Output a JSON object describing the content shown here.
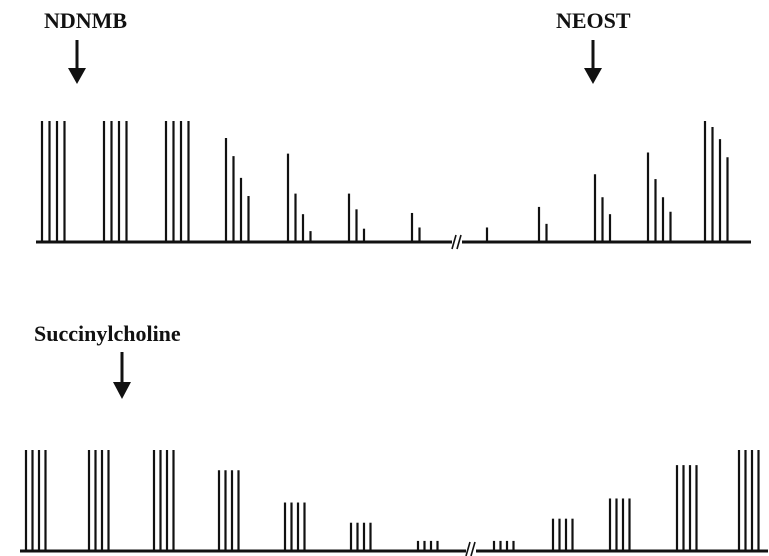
{
  "labels": {
    "ndnmb": "NDNMB",
    "neost": "NEOST",
    "succinylcholine": "Succinylcholine"
  },
  "colors": {
    "ink": "#111111",
    "background": "#ffffff"
  },
  "panels": [
    {
      "id": "non-depolarizing",
      "label_key": "ndnmb",
      "groups": [
        [
          1.0,
          1.0,
          1.0,
          1.0
        ],
        [
          1.0,
          1.0,
          1.0,
          1.0
        ],
        [
          1.0,
          1.0,
          1.0,
          1.0
        ],
        [
          0.86,
          0.71,
          0.53,
          0.38
        ],
        [
          0.73,
          0.4,
          0.23,
          0.09
        ],
        [
          0.4,
          0.27,
          0.11
        ],
        [
          0.24,
          0.12
        ],
        [
          0.12
        ],
        [
          0.29,
          0.15
        ],
        [
          0.56,
          0.37,
          0.23
        ],
        [
          0.74,
          0.52,
          0.37,
          0.25
        ],
        [
          1.0,
          0.95,
          0.85,
          0.7
        ]
      ]
    },
    {
      "id": "depolarizing",
      "label_key": "succinylcholine",
      "groups": [
        [
          1.0,
          1.0,
          1.0,
          1.0
        ],
        [
          1.0,
          1.0,
          1.0,
          1.0
        ],
        [
          1.0,
          1.0,
          1.0,
          1.0
        ],
        [
          0.8,
          0.8,
          0.8,
          0.8
        ],
        [
          0.48,
          0.48,
          0.48,
          0.48
        ],
        [
          0.28,
          0.28,
          0.28,
          0.28
        ],
        [
          0.1,
          0.1,
          0.1,
          0.1
        ],
        [
          0.1,
          0.1,
          0.1,
          0.1
        ],
        [
          0.32,
          0.32,
          0.32,
          0.32
        ],
        [
          0.52,
          0.52,
          0.52,
          0.52
        ],
        [
          0.85,
          0.85,
          0.85,
          0.85
        ],
        [
          1.0,
          1.0,
          1.0,
          1.0
        ]
      ]
    }
  ]
}
